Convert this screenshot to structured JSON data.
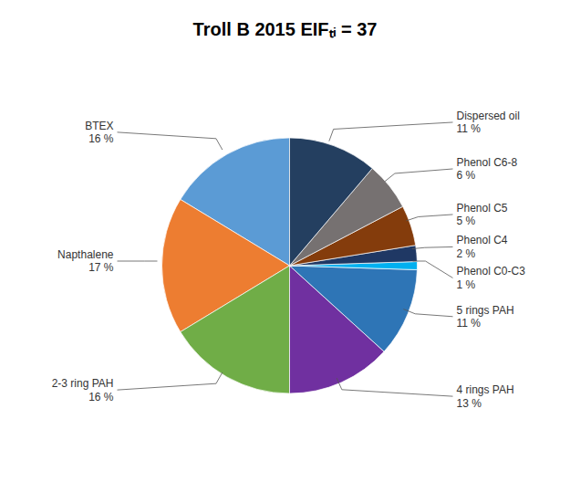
{
  "chart_data": {
    "type": "pie",
    "title": "Troll B 2015 EIFₜᵢ = 37",
    "categories": [
      "BTEX",
      "Napthalene",
      "2-3 ring PAH",
      "4 rings PAH",
      "5 rings PAH",
      "Phenol C0-C3",
      "Phenol C4",
      "Phenol C5",
      "Phenol C6-8",
      "Dispersed oil"
    ],
    "values": [
      16,
      17,
      16,
      13,
      11,
      1,
      2,
      5,
      6,
      11
    ],
    "value_labels": [
      "16 %",
      "17 %",
      "16 %",
      "13 %",
      "11 %",
      "1 %",
      "2 %",
      "5 %",
      "6 %",
      "11 %"
    ],
    "colors": [
      "#5B9BD5",
      "#ED7D31",
      "#70AD47",
      "#7030A0",
      "#2E75B6",
      "#00B0F0",
      "#1F3864",
      "#843C0C",
      "#767171",
      "#243F60"
    ],
    "data_labels": true
  }
}
